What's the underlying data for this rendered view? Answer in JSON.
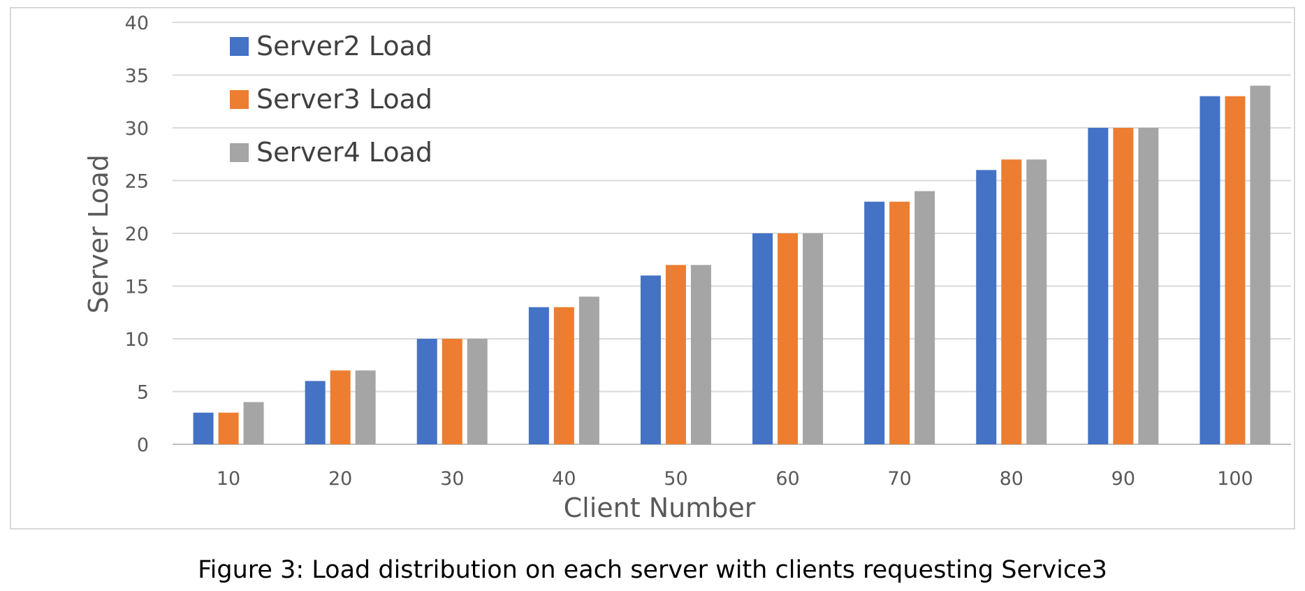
{
  "chart_data": {
    "type": "bar",
    "title": "",
    "xlabel": "Client Number",
    "ylabel": "Server Load",
    "categories": [
      "10",
      "20",
      "30",
      "40",
      "50",
      "60",
      "70",
      "80",
      "90",
      "100"
    ],
    "series": [
      {
        "name": "Server2 Load",
        "color": "#4472c4",
        "values": [
          3,
          6,
          10,
          13,
          16,
          20,
          23,
          26,
          30,
          33
        ]
      },
      {
        "name": "Server3 Load",
        "color": "#ed7d31",
        "values": [
          3,
          7,
          10,
          13,
          17,
          20,
          23,
          27,
          30,
          33
        ]
      },
      {
        "name": "Server4 Load",
        "color": "#a5a5a5",
        "values": [
          4,
          7,
          10,
          14,
          17,
          20,
          24,
          27,
          30,
          34
        ]
      }
    ],
    "ylim": [
      0,
      40
    ],
    "yticks": [
      0,
      5,
      10,
      15,
      20,
      25,
      30,
      35,
      40
    ],
    "grid": true,
    "legend_position": "top-left"
  },
  "caption": "Figure 3: Load distribution on each server with clients requesting Service3"
}
